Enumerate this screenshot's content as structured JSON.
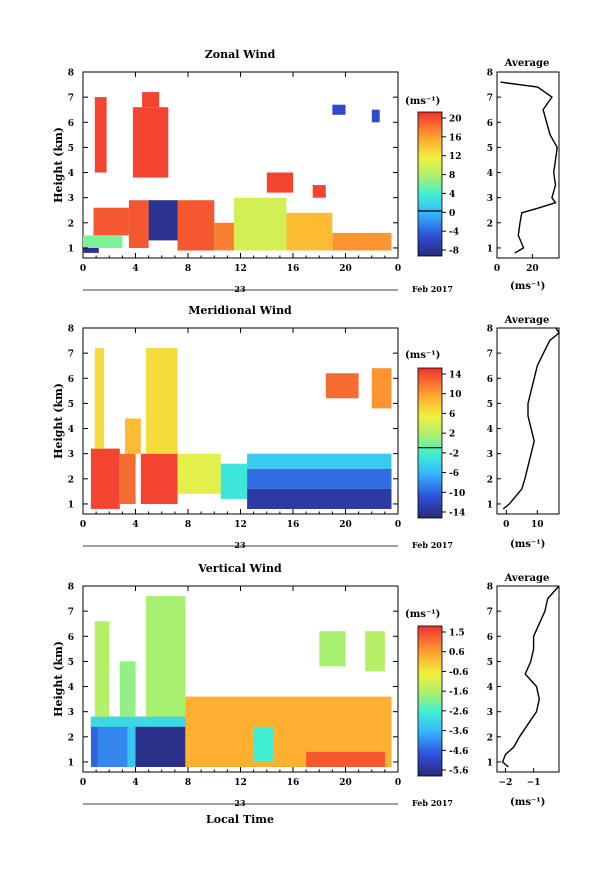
{
  "figure": {
    "xlabel_bottom": "Local Time",
    "day_label": "23",
    "month_label": "Feb 2017",
    "avg_title": "Average",
    "unit_label": "(ms⁻¹)",
    "ylabel": "Height (km)"
  },
  "chart_data": [
    {
      "type": "heatmap",
      "title": "Zonal Wind",
      "xlabel": "",
      "ylabel": "Height (km)",
      "x_ticks": [
        "0",
        "4",
        "8",
        "12",
        "16",
        "20",
        "0"
      ],
      "xlim_hours": [
        0,
        24
      ],
      "ylim_km": [
        0.6,
        8
      ],
      "y_ticks": [
        "1",
        "2",
        "3",
        "4",
        "5",
        "6",
        "7",
        "8"
      ],
      "colorbar": {
        "unit": "(ms⁻¹)",
        "ticks": [
          "20",
          "16",
          "12",
          "8",
          "4",
          "0",
          "-4",
          "-8"
        ],
        "range": [
          -10,
          22
        ],
        "marker": 0
      },
      "regions": [
        {
          "t0": 0.0,
          "t1": 1.2,
          "h0": 0.8,
          "h1": 1.0,
          "value": -9
        },
        {
          "t0": 0.0,
          "t1": 3.0,
          "h0": 1.0,
          "h1": 1.5,
          "value": 6
        },
        {
          "t0": 0.8,
          "t1": 3.5,
          "h0": 1.5,
          "h1": 2.6,
          "value": 20
        },
        {
          "t0": 0.9,
          "t1": 1.8,
          "h0": 4.0,
          "h1": 7.0,
          "value": 21
        },
        {
          "t0": 3.8,
          "t1": 6.5,
          "h0": 3.8,
          "h1": 6.6,
          "value": 21
        },
        {
          "t0": 4.5,
          "t1": 5.8,
          "h0": 6.6,
          "h1": 7.2,
          "value": 21
        },
        {
          "t0": 5.0,
          "t1": 7.2,
          "h0": 1.3,
          "h1": 2.9,
          "value": -9
        },
        {
          "t0": 3.5,
          "t1": 5.0,
          "h0": 1.0,
          "h1": 2.9,
          "value": 20
        },
        {
          "t0": 7.2,
          "t1": 10.0,
          "h0": 0.9,
          "h1": 2.9,
          "value": 20
        },
        {
          "t0": 10.0,
          "t1": 11.5,
          "h0": 0.9,
          "h1": 2.0,
          "value": 18
        },
        {
          "t0": 11.5,
          "t1": 15.5,
          "h0": 0.9,
          "h1": 3.0,
          "value": 10
        },
        {
          "t0": 15.5,
          "t1": 19.0,
          "h0": 0.9,
          "h1": 2.4,
          "value": 15
        },
        {
          "t0": 19.0,
          "t1": 23.5,
          "h0": 0.9,
          "h1": 1.6,
          "value": 17
        },
        {
          "t0": 14.0,
          "t1": 16.0,
          "h0": 3.2,
          "h1": 4.0,
          "value": 21
        },
        {
          "t0": 17.5,
          "t1": 18.5,
          "h0": 3.0,
          "h1": 3.5,
          "value": 21
        },
        {
          "t0": 19.0,
          "t1": 20.0,
          "h0": 6.3,
          "h1": 6.7,
          "value": -6
        },
        {
          "t0": 22.0,
          "t1": 22.6,
          "h0": 6.0,
          "h1": 6.5,
          "value": -6
        }
      ],
      "profile": {
        "title": "Average",
        "xlabel": "(ms⁻¹)",
        "x_ticks": [
          "0",
          "20"
        ],
        "xlim": [
          0,
          35
        ],
        "heights": [
          0.8,
          1.0,
          1.5,
          2.0,
          2.4,
          2.6,
          2.8,
          3.0,
          3.5,
          4.0,
          4.5,
          5.0,
          5.5,
          6.0,
          6.5,
          7.0,
          7.2,
          7.4,
          7.6
        ],
        "values": [
          10,
          15,
          12,
          13,
          14,
          24,
          33,
          31,
          33,
          32,
          33,
          34,
          30,
          28,
          26,
          31,
          27,
          23,
          2
        ]
      }
    },
    {
      "type": "heatmap",
      "title": "Meridional Wind",
      "xlabel": "",
      "ylabel": "Height (km)",
      "x_ticks": [
        "0",
        "4",
        "8",
        "12",
        "16",
        "20",
        "0"
      ],
      "xlim_hours": [
        0,
        24
      ],
      "ylim_km": [
        0.6,
        8
      ],
      "y_ticks": [
        "1",
        "2",
        "3",
        "4",
        "5",
        "6",
        "7",
        "8"
      ],
      "colorbar": {
        "unit": "(ms⁻¹)",
        "ticks": [
          "14",
          "10",
          "6",
          "2",
          "-2",
          "-6",
          "-10",
          "-14"
        ],
        "range": [
          -15,
          17
        ],
        "marker": 0
      },
      "regions": [
        {
          "t0": 0.6,
          "t1": 2.8,
          "h0": 0.8,
          "h1": 3.2,
          "value": 16
        },
        {
          "t0": 0.9,
          "t1": 1.6,
          "h0": 3.2,
          "h1": 7.2,
          "value": 8
        },
        {
          "t0": 2.8,
          "t1": 4.0,
          "h0": 1.0,
          "h1": 3.0,
          "value": 14
        },
        {
          "t0": 3.2,
          "t1": 4.4,
          "h0": 3.0,
          "h1": 4.4,
          "value": 10
        },
        {
          "t0": 4.4,
          "t1": 7.2,
          "h0": 1.0,
          "h1": 3.0,
          "value": 16
        },
        {
          "t0": 4.8,
          "t1": 7.2,
          "h0": 3.0,
          "h1": 7.2,
          "value": 8
        },
        {
          "t0": 7.2,
          "t1": 10.5,
          "h0": 1.4,
          "h1": 3.0,
          "value": 6
        },
        {
          "t0": 10.5,
          "t1": 12.5,
          "h0": 1.2,
          "h1": 2.6,
          "value": -2
        },
        {
          "t0": 12.5,
          "t1": 23.5,
          "h0": 2.4,
          "h1": 3.0,
          "value": -4
        },
        {
          "t0": 12.5,
          "t1": 23.5,
          "h0": 1.6,
          "h1": 2.4,
          "value": -9
        },
        {
          "t0": 12.5,
          "t1": 23.5,
          "h0": 0.8,
          "h1": 1.6,
          "value": -13
        },
        {
          "t0": 18.5,
          "t1": 21.0,
          "h0": 5.2,
          "h1": 6.2,
          "value": 14
        },
        {
          "t0": 22.0,
          "t1": 23.5,
          "h0": 4.8,
          "h1": 6.4,
          "value": 12
        }
      ],
      "profile": {
        "title": "Average",
        "xlabel": "(ms⁻¹)",
        "x_ticks": [
          "0",
          "10"
        ],
        "xlim": [
          -3,
          17
        ],
        "heights": [
          0.8,
          1.0,
          1.3,
          1.6,
          2.0,
          2.5,
          3.0,
          3.5,
          4.0,
          4.5,
          5.0,
          5.5,
          6.0,
          6.5,
          7.0,
          7.5,
          7.8,
          8.0
        ],
        "values": [
          -1,
          1,
          3,
          5,
          6,
          7,
          8,
          9,
          8,
          7,
          7,
          8,
          9,
          10,
          12,
          14,
          17,
          16
        ]
      }
    },
    {
      "type": "heatmap",
      "title": "Vertical Wind",
      "xlabel": "Local Time",
      "ylabel": "Height (km)",
      "x_ticks": [
        "0",
        "4",
        "8",
        "12",
        "16",
        "20",
        "0"
      ],
      "xlim_hours": [
        0,
        24
      ],
      "ylim_km": [
        0.6,
        8
      ],
      "y_ticks": [
        "1",
        "2",
        "3",
        "4",
        "5",
        "6",
        "7",
        "8"
      ],
      "colorbar": {
        "unit": "(ms⁻¹)",
        "ticks": [
          "1.5",
          "0.6",
          "-0.6",
          "-1.6",
          "-2.6",
          "-3.6",
          "-4.6",
          "-5.6"
        ],
        "range": [
          -6.0,
          2.0
        ],
        "marker": null
      },
      "regions": [
        {
          "t0": 0.6,
          "t1": 1.2,
          "h0": 0.8,
          "h1": 2.8,
          "value": -4.6
        },
        {
          "t0": 1.2,
          "t1": 3.4,
          "h0": 0.8,
          "h1": 2.8,
          "value": -4.2
        },
        {
          "t0": 3.4,
          "t1": 4.0,
          "h0": 0.8,
          "h1": 2.8,
          "value": -3.3
        },
        {
          "t0": 4.0,
          "t1": 7.8,
          "h0": 0.8,
          "h1": 2.8,
          "value": -5.8
        },
        {
          "t0": 0.6,
          "t1": 7.8,
          "h0": 2.4,
          "h1": 2.8,
          "value": -3.0
        },
        {
          "t0": 0.9,
          "t1": 2.0,
          "h0": 2.8,
          "h1": 6.6,
          "value": -1.4
        },
        {
          "t0": 2.8,
          "t1": 4.0,
          "h0": 2.8,
          "h1": 5.0,
          "value": -1.8
        },
        {
          "t0": 4.8,
          "t1": 7.8,
          "h0": 2.8,
          "h1": 7.6,
          "value": -1.6
        },
        {
          "t0": 7.8,
          "t1": 23.5,
          "h0": 0.8,
          "h1": 3.6,
          "value": 0.4
        },
        {
          "t0": 13.0,
          "t1": 14.5,
          "h0": 1.0,
          "h1": 2.4,
          "value": -2.6
        },
        {
          "t0": 17.0,
          "t1": 23.0,
          "h0": 0.8,
          "h1": 1.4,
          "value": 1.5
        },
        {
          "t0": 18.0,
          "t1": 20.0,
          "h0": 4.8,
          "h1": 6.2,
          "value": -1.6
        },
        {
          "t0": 21.5,
          "t1": 23.0,
          "h0": 4.6,
          "h1": 6.2,
          "value": -1.4
        }
      ],
      "profile": {
        "title": "Average",
        "xlabel": "(ms⁻¹)",
        "x_ticks": [
          "−2",
          "−1"
        ],
        "xlim": [
          -2.3,
          -0.1
        ],
        "heights": [
          0.8,
          1.0,
          1.3,
          1.6,
          2.0,
          2.5,
          3.0,
          3.5,
          4.0,
          4.5,
          5.0,
          5.5,
          6.0,
          6.5,
          7.0,
          7.5,
          8.0
        ],
        "values": [
          -1.9,
          -2.1,
          -2.0,
          -1.7,
          -1.5,
          -1.2,
          -0.9,
          -0.8,
          -0.9,
          -1.3,
          -1.1,
          -1.0,
          -1.0,
          -0.8,
          -0.6,
          -0.5,
          -0.1
        ]
      }
    }
  ]
}
